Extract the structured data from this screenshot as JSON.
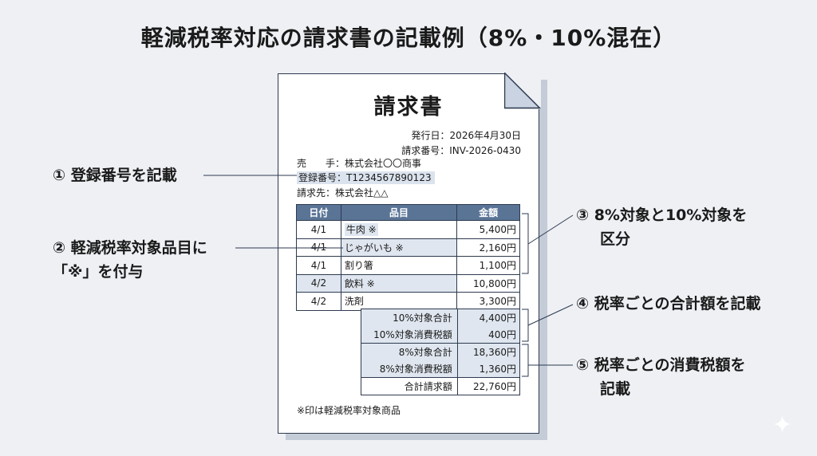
{
  "page_title": "軽減税率対応の請求書の記載例（8%・10%混在）",
  "invoice": {
    "title": "請求書",
    "issue_date": "発行日：2026年4月30日",
    "invoice_no": "請求番号：INV-2026-0430",
    "seller": "売　　手：株式会社〇〇商事",
    "registration_no": "登録番号：T1234567890123",
    "buyer": "請求先：株式会社△△",
    "table": {
      "headers": [
        "日付",
        "品目",
        "金額"
      ],
      "rows": [
        {
          "date": "4/1",
          "item": "牛肉 ※",
          "amount": "5,400円",
          "reduced": true
        },
        {
          "date": "4/1",
          "item": "じゃがいも ※",
          "amount": "2,160円",
          "reduced": true
        },
        {
          "date": "4/1",
          "item": "割り箸",
          "amount": "1,100円",
          "reduced": false
        },
        {
          "date": "4/2",
          "item": "飲料 ※",
          "amount": "10,800円",
          "reduced": true
        },
        {
          "date": "4/2",
          "item": "洗剤",
          "amount": "3,300円",
          "reduced": false
        }
      ]
    },
    "summary": {
      "ten_total_label": "10%対象合計",
      "ten_total_value": "4,400円",
      "ten_tax_label": "10%対象消費税額",
      "ten_tax_value": "400円",
      "eight_total_label": "8%対象合計",
      "eight_total_value": "18,360円",
      "eight_tax_label": "8%対象消費税額",
      "eight_tax_value": "1,360円",
      "grand_label": "合計請求額",
      "grand_value": "22,760円"
    },
    "note": "※印は軽減税率対象商品"
  },
  "callouts": {
    "c1": "① 登録番号を記載",
    "c2_line1": "② 軽減税率対象品目に",
    "c2_line2": "「※」を付与",
    "c3_line1": "③ 8%対象と10%対象を",
    "c3_line2": "区分",
    "c4": "④ 税率ごとの合計額を記載",
    "c5_line1": "⑤ 税率ごとの消費税額を",
    "c5_line2": "記載"
  },
  "colors": {
    "header_fill": "#5a7496",
    "highlight_fill": "#dfe6ef",
    "line_color": "#2e3a50",
    "background": "#eef0f4"
  }
}
